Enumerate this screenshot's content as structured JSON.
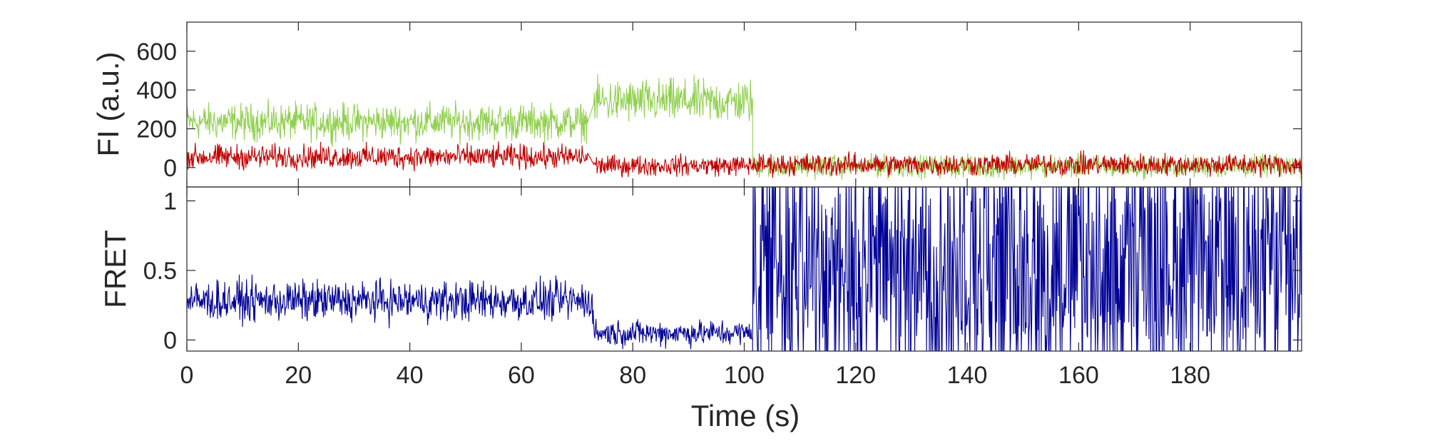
{
  "chart_data": [
    {
      "type": "line",
      "panel": "top",
      "ylabel": "FI (a.u.)",
      "xlim": [
        0,
        200
      ],
      "ylim": [
        -100,
        750
      ],
      "yticks": [
        0,
        200,
        400,
        600
      ],
      "grid": false,
      "series": [
        {
          "color": "#92d050",
          "segments": [
            {
              "x": [
                0,
                72
              ],
              "y_mean": 235,
              "y_noise": 90
            },
            {
              "x": [
                73,
                101.5
              ],
              "y_mean": 340,
              "y_noise": 110
            },
            {
              "x": [
                101.5,
                200
              ],
              "y_mean": 5,
              "y_noise": 55
            }
          ]
        },
        {
          "color": "#c00000",
          "segments": [
            {
              "x": [
                0,
                72
              ],
              "y_mean": 55,
              "y_noise": 60
            },
            {
              "x": [
                73,
                101.5
              ],
              "y_mean": 10,
              "y_noise": 50
            },
            {
              "x": [
                101.5,
                200
              ],
              "y_mean": 15,
              "y_noise": 55
            }
          ]
        }
      ]
    },
    {
      "type": "line",
      "panel": "bottom",
      "ylabel": "FRET",
      "xlabel": "Time (s)",
      "xlim": [
        0,
        200
      ],
      "ylim": [
        -0.08,
        1.1
      ],
      "yticks": [
        0,
        0.5,
        1
      ],
      "xticks": [
        0,
        20,
        40,
        60,
        80,
        100,
        120,
        140,
        160,
        180
      ],
      "grid": false,
      "series": [
        {
          "color": "#000096",
          "segments": [
            {
              "x": [
                0,
                73
              ],
              "y_mean": 0.28,
              "y_noise": 0.14
            },
            {
              "x": [
                73,
                101.5
              ],
              "y_mean": 0.05,
              "y_noise": 0.09
            },
            {
              "x": [
                101.5,
                200
              ],
              "y_mean": 0.55,
              "y_noise": 1.0
            }
          ]
        }
      ]
    }
  ]
}
